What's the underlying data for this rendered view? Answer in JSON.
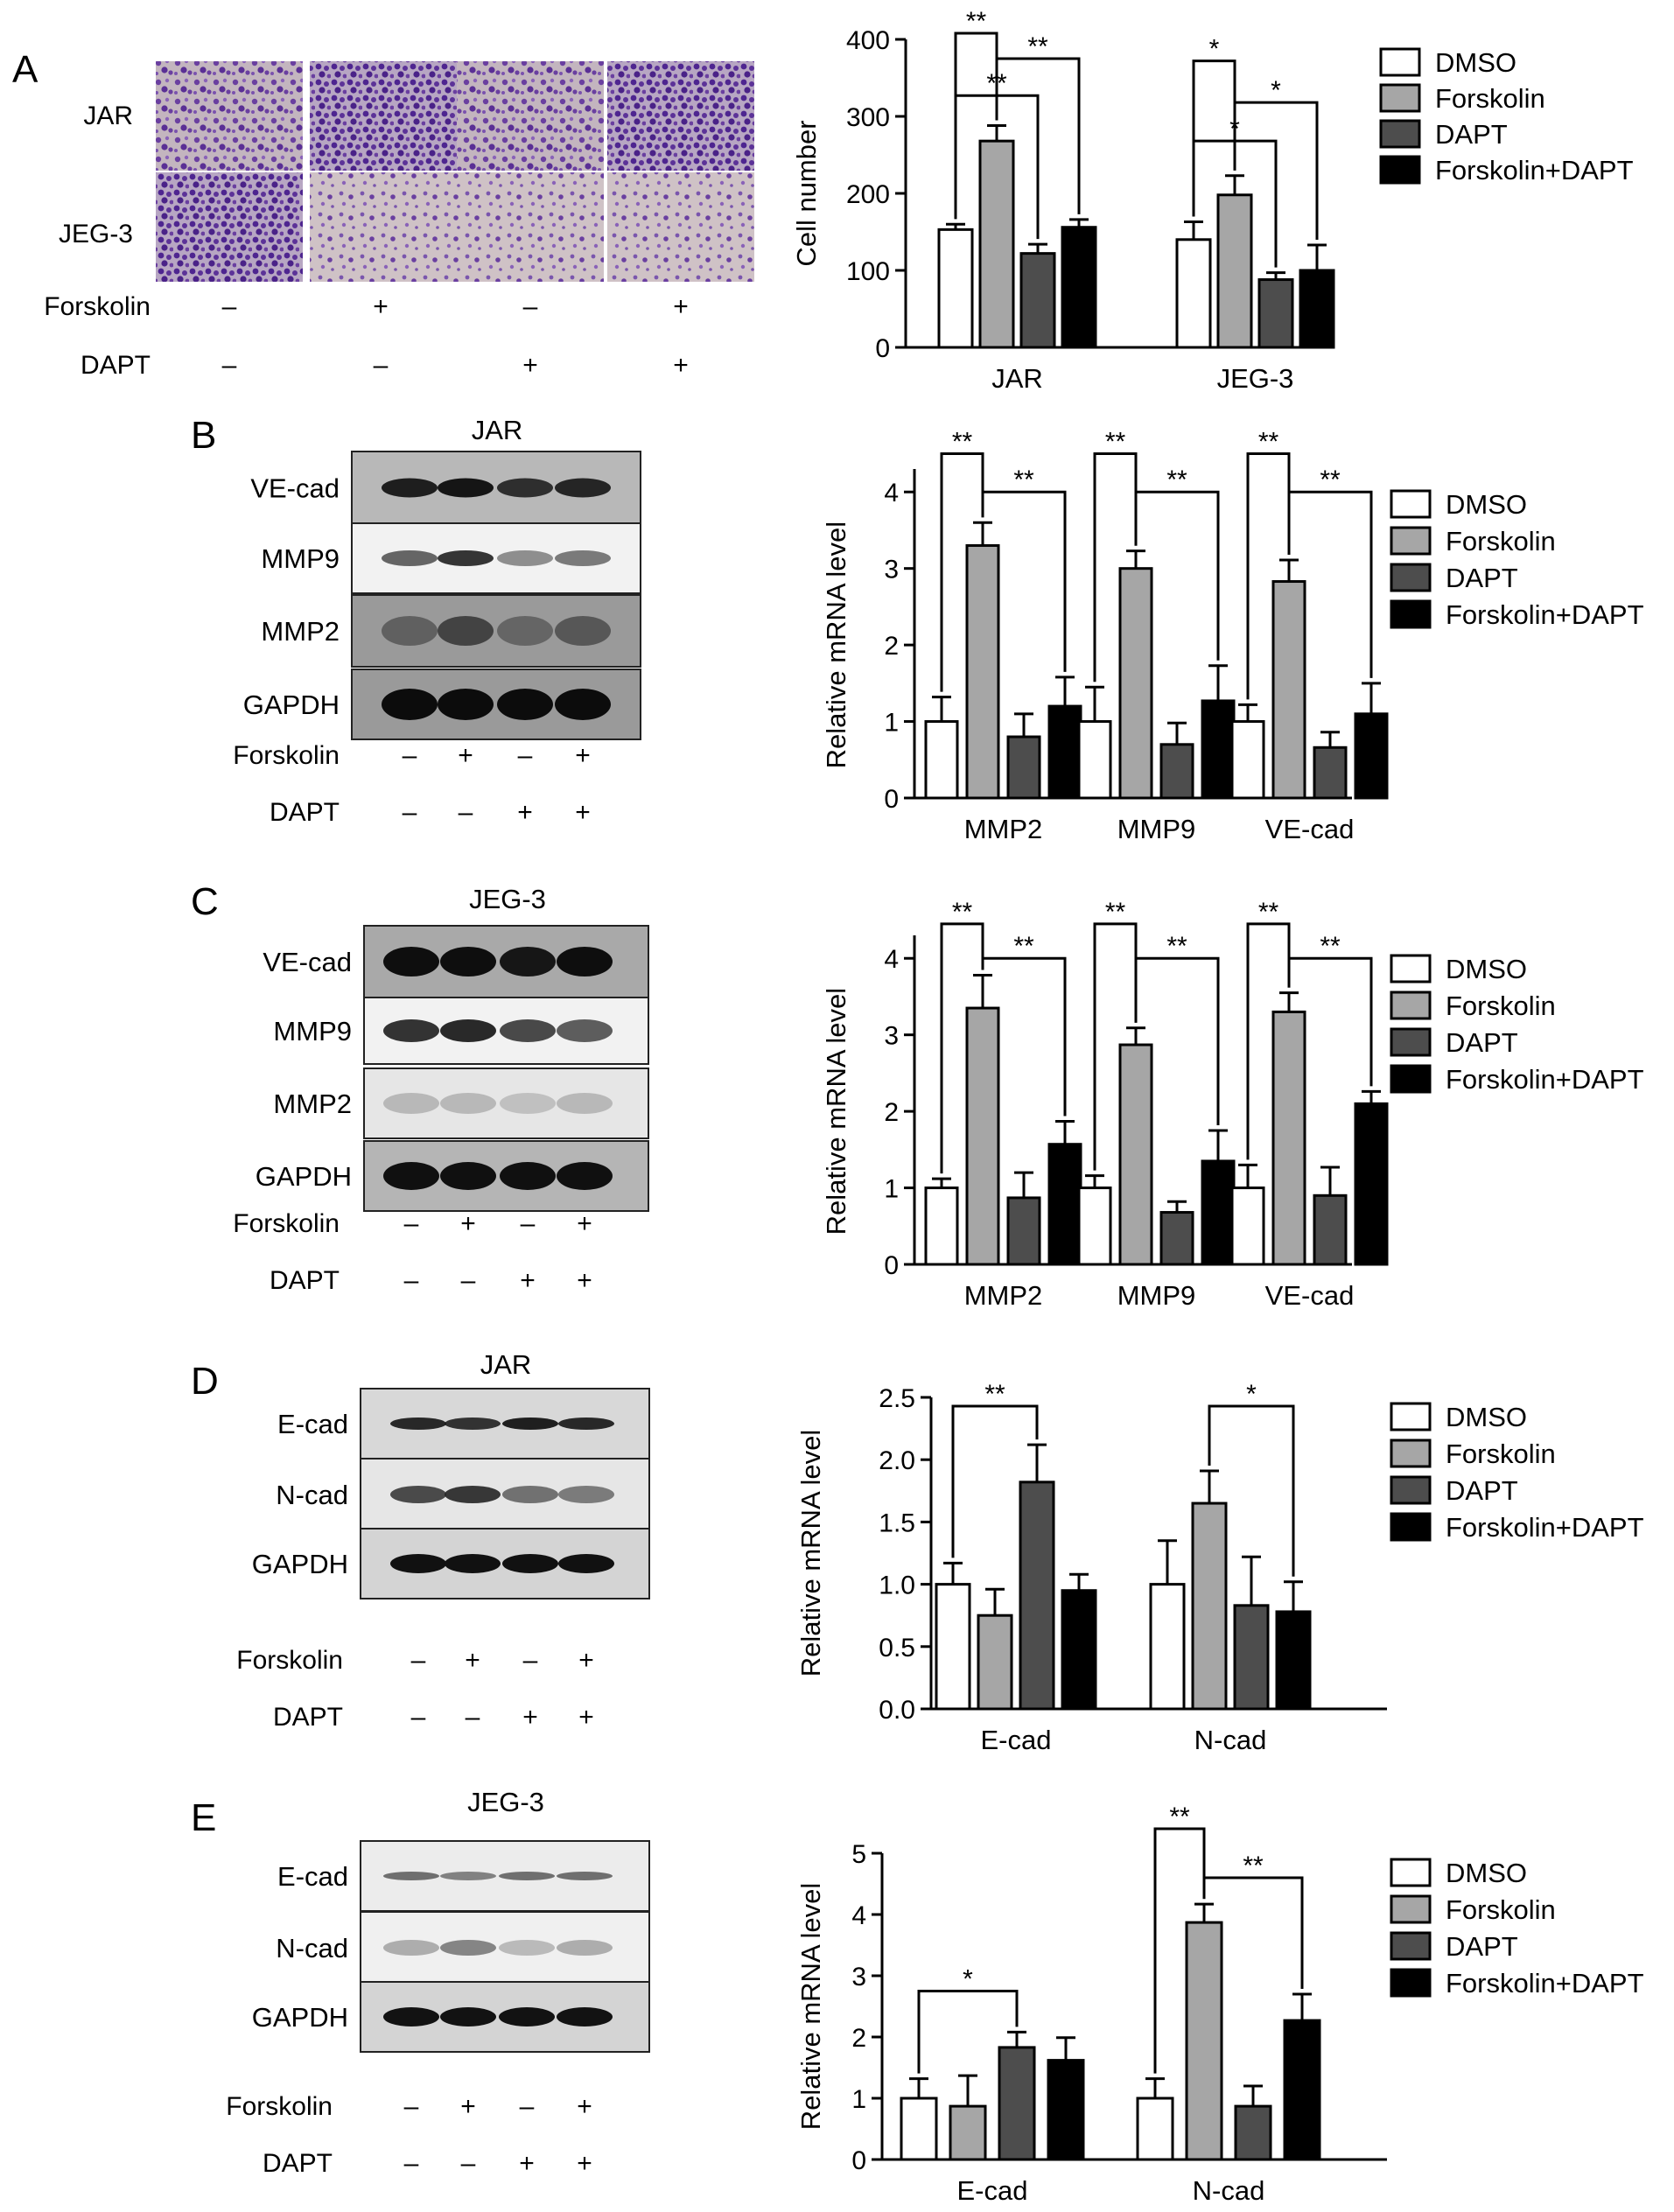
{
  "legend_labels": [
    "DMSO",
    "Forskolin",
    "DAPT",
    "Forskolin+DAPT"
  ],
  "colors": {
    "DMSO": "#ffffff",
    "Forskolin": "#a6a6a6",
    "DAPT": "#4d4d4d",
    "Forskolin+DAPT": "#000000"
  },
  "treatments": {
    "forskolin_label": "Forskolin",
    "dapt_label": "DAPT",
    "forskolin": [
      "–",
      "+",
      "–",
      "+"
    ],
    "dapt": [
      "–",
      "–",
      "+",
      "+"
    ]
  },
  "panels": {
    "A": {
      "letter": "A",
      "micrograph_rows": [
        "JAR",
        "JEG-3"
      ]
    },
    "B": {
      "letter": "B",
      "blot_title": "JAR",
      "bands": [
        "VE-cad",
        "MMP9",
        "MMP2",
        "GAPDH"
      ]
    },
    "C": {
      "letter": "C",
      "blot_title": "JEG-3",
      "bands": [
        "VE-cad",
        "MMP9",
        "MMP2",
        "GAPDH"
      ]
    },
    "D": {
      "letter": "D",
      "blot_title": "JAR",
      "bands": [
        "E-cad",
        "N-cad",
        "GAPDH"
      ]
    },
    "E": {
      "letter": "E",
      "blot_title": "JEG-3",
      "bands": [
        "E-cad",
        "N-cad",
        "GAPDH"
      ]
    }
  },
  "chart_data": [
    {
      "panel": "A",
      "type": "bar",
      "ylabel": "Cell number",
      "ylim": [
        0,
        400
      ],
      "yticks": [
        "0",
        "100",
        "200",
        "300",
        "400"
      ],
      "categories": [
        "JAR",
        "JEG-3"
      ],
      "series": [
        {
          "name": "DMSO",
          "values": [
            153,
            140
          ],
          "errors": [
            7,
            23
          ]
        },
        {
          "name": "Forskolin",
          "values": [
            268,
            198
          ],
          "errors": [
            20,
            25
          ]
        },
        {
          "name": "DAPT",
          "values": [
            122,
            88
          ],
          "errors": [
            12,
            9
          ]
        },
        {
          "name": "Forskolin+DAPT",
          "values": [
            156,
            100
          ],
          "errors": [
            10,
            33
          ]
        }
      ],
      "significance": [
        {
          "cat": 0,
          "from": 0,
          "to": 1,
          "label": "**",
          "y": 408
        },
        {
          "cat": 0,
          "from": 0,
          "to": 2,
          "label": "**",
          "y": 327
        },
        {
          "cat": 0,
          "from": 1,
          "to": 3,
          "label": "**",
          "y": 375
        },
        {
          "cat": 1,
          "from": 0,
          "to": 1,
          "label": "*",
          "y": 372
        },
        {
          "cat": 1,
          "from": 0,
          "to": 2,
          "label": "*",
          "y": 268
        },
        {
          "cat": 1,
          "from": 1,
          "to": 3,
          "label": "*",
          "y": 318
        }
      ]
    },
    {
      "panel": "B",
      "type": "bar",
      "ylabel": "Relative mRNA level",
      "ylim": [
        0,
        4.3
      ],
      "yticks": [
        "0",
        "1",
        "2",
        "3",
        "4"
      ],
      "categories": [
        "MMP2",
        "MMP9",
        "VE-cad"
      ],
      "series": [
        {
          "name": "DMSO",
          "values": [
            1.0,
            1.0,
            1.0
          ],
          "errors": [
            0.32,
            0.45,
            0.22
          ]
        },
        {
          "name": "Forskolin",
          "values": [
            3.3,
            3.0,
            2.83
          ],
          "errors": [
            0.3,
            0.23,
            0.28
          ]
        },
        {
          "name": "DAPT",
          "values": [
            0.8,
            0.7,
            0.66
          ],
          "errors": [
            0.3,
            0.28,
            0.2
          ]
        },
        {
          "name": "Forskolin+DAPT",
          "values": [
            1.2,
            1.27,
            1.1
          ],
          "errors": [
            0.38,
            0.46,
            0.4
          ]
        }
      ],
      "significance": [
        {
          "cat": 0,
          "from": 0,
          "to": 1,
          "label": "**",
          "y": 4.5
        },
        {
          "cat": 0,
          "from": 1,
          "to": 3,
          "label": "**",
          "y": 4.0
        },
        {
          "cat": 1,
          "from": 0,
          "to": 1,
          "label": "**",
          "y": 4.5
        },
        {
          "cat": 1,
          "from": 1,
          "to": 3,
          "label": "**",
          "y": 4.0
        },
        {
          "cat": 2,
          "from": 0,
          "to": 1,
          "label": "**",
          "y": 4.5
        },
        {
          "cat": 2,
          "from": 1,
          "to": 3,
          "label": "**",
          "y": 4.0
        }
      ]
    },
    {
      "panel": "C",
      "type": "bar",
      "ylabel": "Relative mRNA level",
      "ylim": [
        0,
        4.3
      ],
      "yticks": [
        "0",
        "1",
        "2",
        "3",
        "4"
      ],
      "categories": [
        "MMP2",
        "MMP9",
        "VE-cad"
      ],
      "series": [
        {
          "name": "DMSO",
          "values": [
            1.0,
            1.0,
            1.0
          ],
          "errors": [
            0.12,
            0.16,
            0.3
          ]
        },
        {
          "name": "Forskolin",
          "values": [
            3.35,
            2.87,
            3.3
          ],
          "errors": [
            0.43,
            0.22,
            0.25
          ]
        },
        {
          "name": "DAPT",
          "values": [
            0.87,
            0.68,
            0.9
          ],
          "errors": [
            0.33,
            0.14,
            0.37
          ]
        },
        {
          "name": "Forskolin+DAPT",
          "values": [
            1.57,
            1.35,
            2.1
          ],
          "errors": [
            0.3,
            0.4,
            0.16
          ]
        }
      ],
      "significance": [
        {
          "cat": 0,
          "from": 0,
          "to": 1,
          "label": "**",
          "y": 4.45
        },
        {
          "cat": 0,
          "from": 1,
          "to": 3,
          "label": "**",
          "y": 4.0
        },
        {
          "cat": 1,
          "from": 0,
          "to": 1,
          "label": "**",
          "y": 4.45
        },
        {
          "cat": 1,
          "from": 1,
          "to": 3,
          "label": "**",
          "y": 4.0
        },
        {
          "cat": 2,
          "from": 0,
          "to": 1,
          "label": "**",
          "y": 4.45
        },
        {
          "cat": 2,
          "from": 1,
          "to": 3,
          "label": "**",
          "y": 4.0
        }
      ]
    },
    {
      "panel": "D",
      "type": "bar",
      "ylabel": "Relative mRNA level",
      "ylim": [
        0,
        2.5
      ],
      "yticks": [
        "0.0",
        "0.5",
        "1.0",
        "1.5",
        "2.0",
        "2.5"
      ],
      "categories": [
        "E-cad",
        "N-cad"
      ],
      "series": [
        {
          "name": "DMSO",
          "values": [
            1.0,
            1.0
          ],
          "errors": [
            0.17,
            0.35
          ]
        },
        {
          "name": "Forskolin",
          "values": [
            0.75,
            1.65
          ],
          "errors": [
            0.21,
            0.26
          ]
        },
        {
          "name": "DAPT",
          "values": [
            1.82,
            0.83
          ],
          "errors": [
            0.3,
            0.39
          ]
        },
        {
          "name": "Forskolin+DAPT",
          "values": [
            0.95,
            0.78
          ],
          "errors": [
            0.13,
            0.24
          ]
        }
      ],
      "significance": [
        {
          "cat": 0,
          "from": 0,
          "to": 2,
          "label": "**",
          "y": 2.43
        },
        {
          "cat": 1,
          "from": 1,
          "to": 3,
          "label": "*",
          "y": 2.43
        }
      ]
    },
    {
      "panel": "E",
      "type": "bar",
      "ylabel": "Relative mRNA level",
      "ylim": [
        0,
        5
      ],
      "yticks": [
        "0",
        "1",
        "2",
        "3",
        "4",
        "5"
      ],
      "categories": [
        "E-cad",
        "N-cad"
      ],
      "series": [
        {
          "name": "DMSO",
          "values": [
            1.0,
            1.0
          ],
          "errors": [
            0.32,
            0.32
          ]
        },
        {
          "name": "Forskolin",
          "values": [
            0.87,
            3.87
          ],
          "errors": [
            0.5,
            0.3
          ]
        },
        {
          "name": "DAPT",
          "values": [
            1.83,
            0.87
          ],
          "errors": [
            0.25,
            0.33
          ]
        },
        {
          "name": "Forskolin+DAPT",
          "values": [
            1.62,
            2.27
          ],
          "errors": [
            0.37,
            0.43
          ]
        }
      ],
      "significance": [
        {
          "cat": 0,
          "from": 0,
          "to": 2,
          "label": "*",
          "y": 2.75
        },
        {
          "cat": 1,
          "from": 0,
          "to": 1,
          "label": "**",
          "y": 5.4
        },
        {
          "cat": 1,
          "from": 1,
          "to": 3,
          "label": "**",
          "y": 4.6
        }
      ]
    }
  ]
}
